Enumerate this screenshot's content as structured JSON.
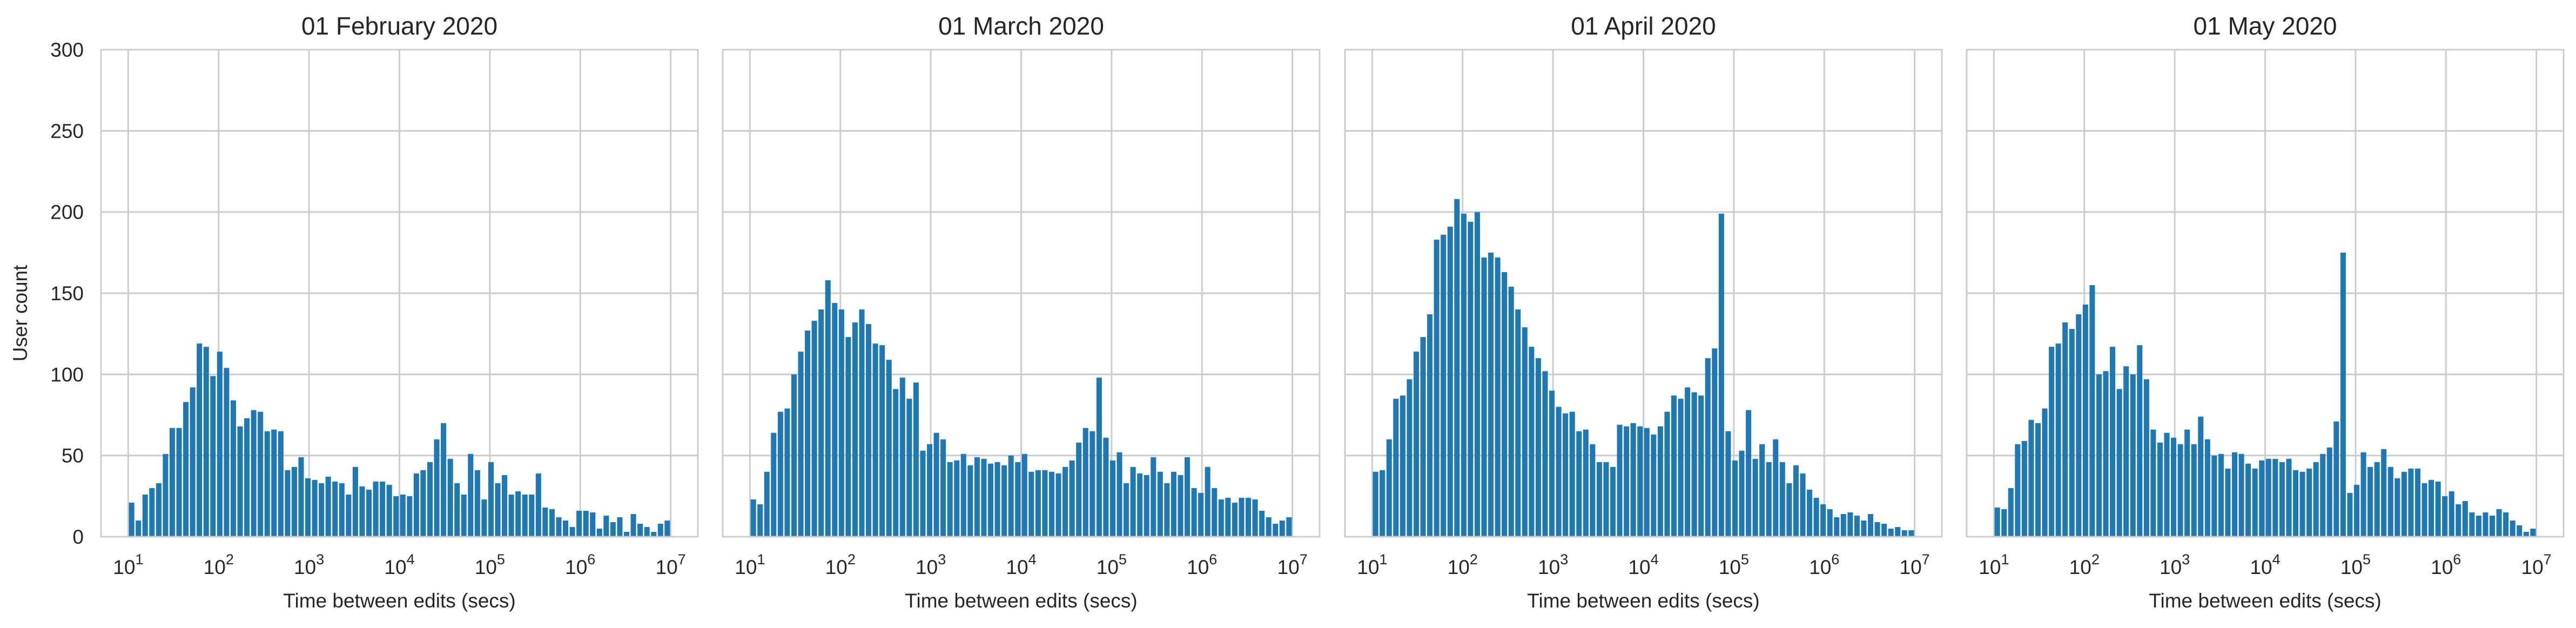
{
  "figure": {
    "ylabel": "User count",
    "xlabel": "Time between edits (secs)",
    "bar_color": "#1f77b4",
    "grid_color": "#cccccc",
    "background": "#ffffff"
  },
  "chart_data": [
    {
      "type": "bar",
      "title": "01 February 2020",
      "xlabel": "Time between edits (secs)",
      "ylabel": "User count",
      "x_scale": "log",
      "x_bin_range": [
        10,
        10000000
      ],
      "xlim": [
        5,
        20000000
      ],
      "ylim": [
        0,
        300
      ],
      "xticks": [
        10,
        100,
        1000,
        10000,
        100000,
        1000000,
        10000000
      ],
      "yticks": [
        0,
        50,
        100,
        150,
        200,
        250,
        300
      ],
      "grid": true,
      "values": [
        21,
        10,
        26,
        30,
        33,
        51,
        67,
        67,
        83,
        92,
        119,
        117,
        99,
        114,
        104,
        84,
        68,
        73,
        78,
        77,
        65,
        66,
        65,
        41,
        43,
        49,
        36,
        35,
        33,
        37,
        34,
        33,
        26,
        43,
        31,
        29,
        34,
        34,
        32,
        25,
        26,
        25,
        39,
        41,
        46,
        60,
        70,
        48,
        33,
        26,
        51,
        41,
        23,
        46,
        33,
        38,
        26,
        28,
        26,
        26,
        39,
        18,
        17,
        12,
        10,
        6,
        16,
        16,
        15,
        5,
        13,
        9,
        12,
        3,
        14,
        8,
        6,
        3,
        8,
        10
      ]
    },
    {
      "type": "bar",
      "title": "01 March 2020",
      "xlabel": "Time between edits (secs)",
      "ylabel": "",
      "x_scale": "log",
      "x_bin_range": [
        10,
        10000000
      ],
      "xlim": [
        5,
        20000000
      ],
      "ylim": [
        0,
        300
      ],
      "xticks": [
        10,
        100,
        1000,
        10000,
        100000,
        1000000,
        10000000
      ],
      "yticks": [
        0,
        50,
        100,
        150,
        200,
        250,
        300
      ],
      "grid": true,
      "values": [
        23,
        20,
        40,
        64,
        77,
        79,
        100,
        114,
        127,
        133,
        140,
        158,
        144,
        140,
        123,
        132,
        140,
        131,
        119,
        118,
        109,
        91,
        98,
        85,
        95,
        53,
        57,
        64,
        60,
        46,
        47,
        51,
        44,
        49,
        48,
        45,
        46,
        44,
        50,
        46,
        51,
        40,
        41,
        41,
        40,
        39,
        43,
        47,
        58,
        67,
        65,
        98,
        61,
        47,
        52,
        33,
        43,
        39,
        38,
        49,
        40,
        33,
        40,
        38,
        49,
        30,
        27,
        43,
        30,
        23,
        24,
        21,
        24,
        24,
        23,
        16,
        12,
        8,
        10,
        12
      ]
    },
    {
      "type": "bar",
      "title": "01 April 2020",
      "xlabel": "Time between edits (secs)",
      "ylabel": "",
      "x_scale": "log",
      "x_bin_range": [
        10,
        10000000
      ],
      "xlim": [
        5,
        20000000
      ],
      "ylim": [
        0,
        300
      ],
      "xticks": [
        10,
        100,
        1000,
        10000,
        100000,
        1000000,
        10000000
      ],
      "yticks": [
        0,
        50,
        100,
        150,
        200,
        250,
        300
      ],
      "grid": true,
      "values": [
        40,
        41,
        60,
        85,
        87,
        97,
        114,
        123,
        137,
        183,
        186,
        191,
        208,
        199,
        194,
        200,
        172,
        175,
        172,
        163,
        154,
        140,
        129,
        117,
        110,
        102,
        90,
        80,
        76,
        77,
        65,
        66,
        57,
        46,
        46,
        43,
        69,
        68,
        70,
        68,
        67,
        63,
        68,
        77,
        87,
        85,
        92,
        89,
        87,
        110,
        116,
        199,
        65,
        47,
        53,
        78,
        48,
        57,
        46,
        60,
        46,
        33,
        44,
        39,
        29,
        24,
        20,
        17,
        12,
        14,
        15,
        13,
        10,
        14,
        9,
        8,
        5,
        6,
        4,
        4
      ]
    },
    {
      "type": "bar",
      "title": "01 May 2020",
      "xlabel": "Time between edits (secs)",
      "ylabel": "",
      "x_scale": "log",
      "x_bin_range": [
        10,
        10000000
      ],
      "xlim": [
        5,
        20000000
      ],
      "ylim": [
        0,
        300
      ],
      "xticks": [
        10,
        100,
        1000,
        10000,
        100000,
        1000000,
        10000000
      ],
      "yticks": [
        0,
        50,
        100,
        150,
        200,
        250,
        300
      ],
      "grid": true,
      "values": [
        18,
        17,
        30,
        57,
        59,
        72,
        70,
        79,
        117,
        119,
        132,
        128,
        137,
        143,
        155,
        100,
        102,
        117,
        91,
        105,
        100,
        118,
        97,
        66,
        58,
        64,
        61,
        57,
        66,
        57,
        74,
        60,
        50,
        51,
        42,
        52,
        51,
        45,
        42,
        47,
        48,
        48,
        46,
        48,
        41,
        40,
        42,
        46,
        51,
        55,
        71,
        175,
        27,
        32,
        52,
        43,
        46,
        54,
        43,
        36,
        40,
        42,
        42,
        33,
        35,
        34,
        25,
        28,
        20,
        22,
        15,
        13,
        15,
        13,
        17,
        15,
        10,
        7,
        3,
        5
      ]
    }
  ]
}
